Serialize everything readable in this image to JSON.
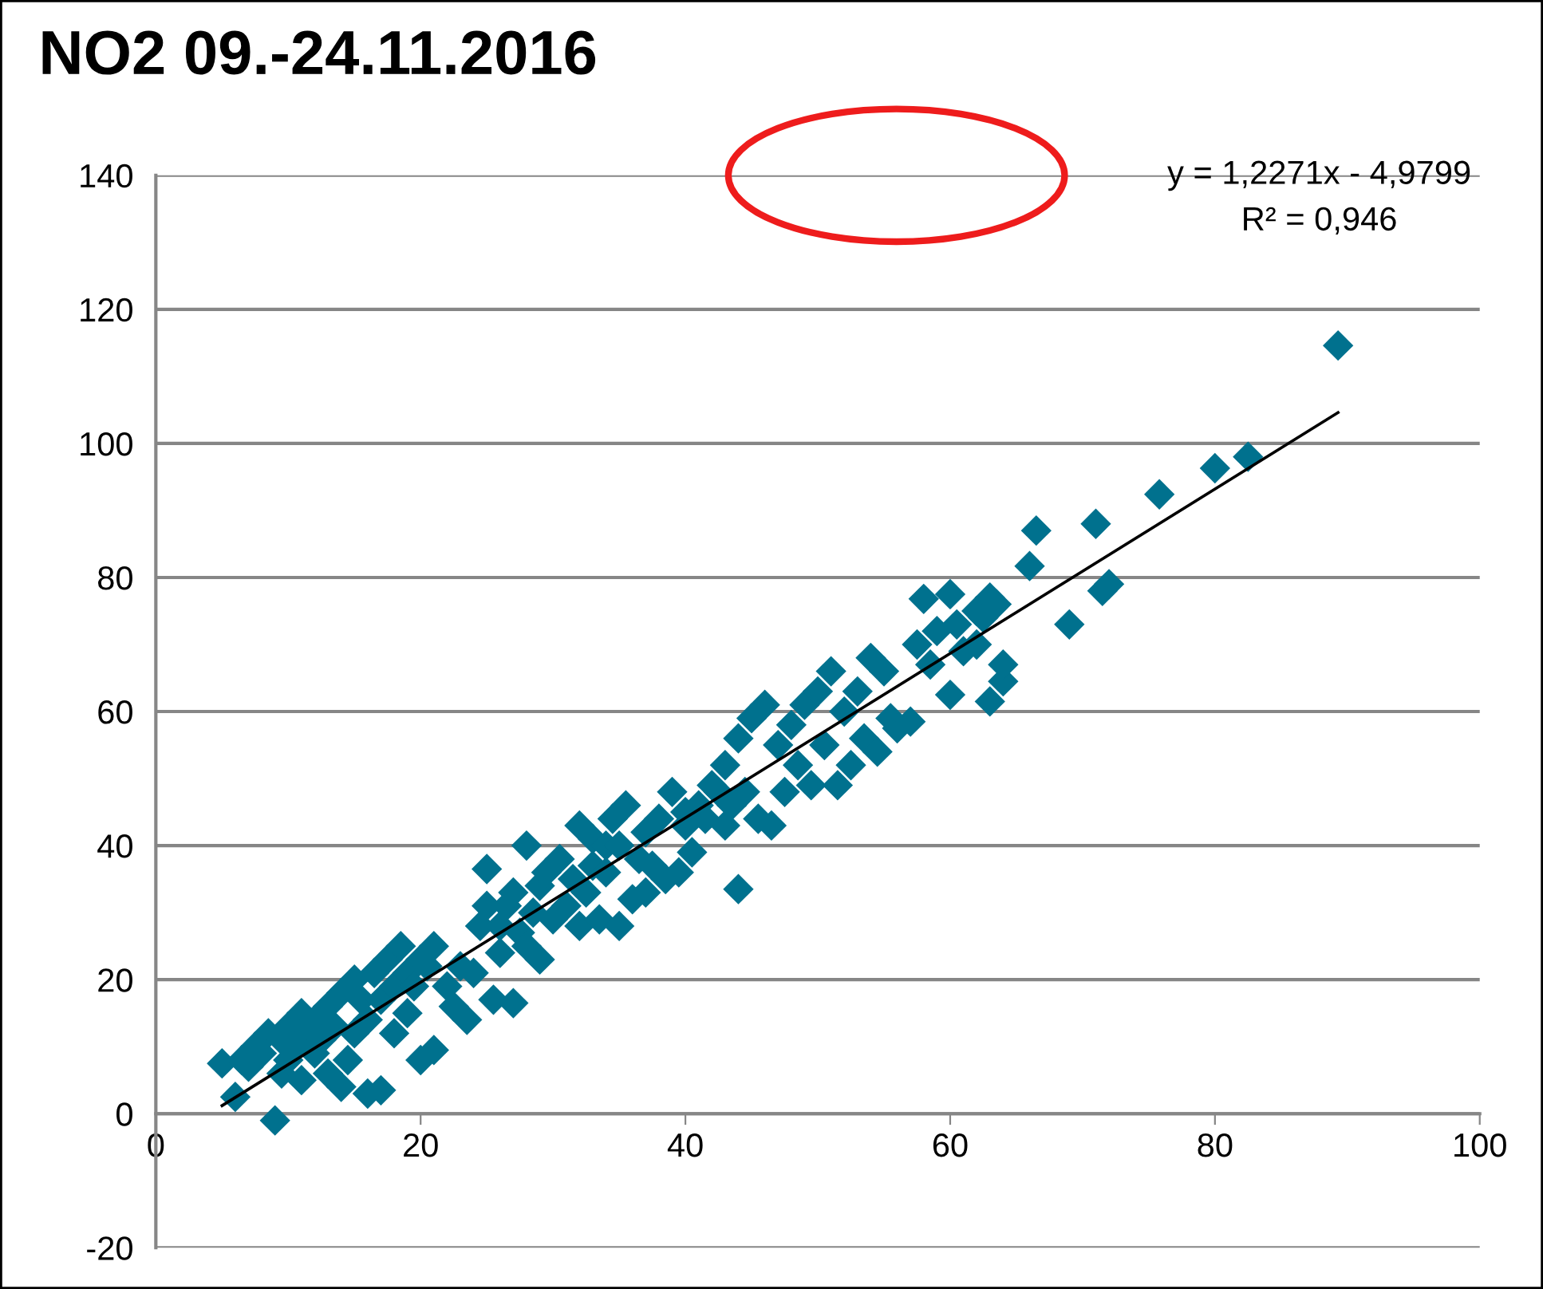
{
  "chart_data": {
    "type": "scatter",
    "title": "NO2 09.-24.11.2016",
    "annotations": [
      "y = 1,2271x - 4,9799",
      "R² = 0,946"
    ],
    "xlim": [
      0,
      100
    ],
    "xticks": [
      0,
      20,
      40,
      60,
      80,
      100
    ],
    "ylim": [
      -20,
      140
    ],
    "yticks": [
      -20,
      0,
      20,
      40,
      60,
      80,
      100,
      120,
      140
    ],
    "grid": "y",
    "series": [
      {
        "marker": "diamond",
        "color": "#00718e",
        "x": [
          5,
          6,
          6.5,
          7,
          7.5,
          8,
          8.5,
          9,
          9.5,
          9.5,
          10,
          10,
          10.5,
          11,
          11,
          11.5,
          12,
          12,
          12.5,
          13,
          13,
          13.5,
          14,
          14,
          14.5,
          15,
          15,
          15.5,
          16,
          16,
          16.5,
          17,
          17,
          17.5,
          18,
          18,
          18.5,
          19,
          19,
          19.5,
          20,
          20,
          20.5,
          21,
          21,
          22,
          22.5,
          23,
          23.5,
          24,
          24.5,
          25,
          25,
          25.5,
          26,
          26,
          26.5,
          27,
          27,
          27.5,
          28,
          28,
          28.5,
          29,
          29,
          29.5,
          30,
          30.5,
          31,
          31.5,
          32,
          32,
          32.5,
          33,
          33,
          33.5,
          34,
          34,
          34.5,
          35,
          35,
          35.5,
          36,
          36.5,
          37,
          37,
          37.5,
          38,
          38.5,
          39,
          39.5,
          40,
          40,
          40.5,
          41,
          41.5,
          42,
          42.5,
          43,
          43,
          43.5,
          44,
          44,
          44.5,
          45,
          45.5,
          46,
          46.5,
          47,
          47.5,
          48,
          48.5,
          49,
          49.5,
          50,
          50.5,
          51,
          51.5,
          52,
          52.5,
          53,
          53.5,
          54,
          54.5,
          55,
          55.5,
          56,
          57,
          57.5,
          58,
          58.5,
          59,
          60,
          60,
          60.5,
          61,
          62,
          62,
          62.5,
          63,
          63,
          63.5,
          64,
          64,
          66,
          66.5,
          69,
          71,
          71.5,
          72,
          75.8,
          80,
          82.5,
          89.3
        ],
        "values": [
          7.5,
          2.5,
          8,
          7,
          10,
          9,
          12,
          -1,
          6,
          11,
          13,
          8,
          10,
          15,
          5,
          12,
          14,
          9,
          11,
          16,
          6,
          13,
          18,
          4,
          8,
          20,
          12,
          17,
          3,
          14,
          21,
          3.5,
          17,
          23,
          12,
          19,
          25,
          15,
          21,
          19,
          8,
          23,
          22,
          9.5,
          25,
          19,
          16,
          22,
          14,
          21,
          28,
          36.5,
          31,
          17,
          28,
          24,
          31,
          16.5,
          33,
          27,
          40,
          25,
          30,
          34,
          23,
          36,
          29,
          38,
          31,
          35,
          43,
          28,
          33,
          37,
          41,
          29,
          40,
          36,
          44,
          28,
          40,
          46,
          32,
          38,
          33,
          42,
          37,
          44,
          35,
          48,
          36,
          43,
          45,
          39,
          46,
          44,
          49,
          48,
          43,
          52,
          46,
          33.5,
          56,
          48,
          59,
          44,
          61,
          43,
          55,
          48,
          58,
          52,
          61,
          49,
          63,
          55,
          66,
          49,
          60,
          52,
          63,
          56,
          68,
          54,
          66,
          59,
          57.5,
          58.5,
          70,
          76.8,
          67,
          72,
          77.5,
          62.5,
          73,
          69,
          70,
          75,
          74,
          61.5,
          77,
          76,
          64.5,
          67,
          81.7,
          87,
          73,
          88,
          78,
          79,
          92.4,
          96.3,
          98,
          114.6
        ]
      },
      {
        "type": "line",
        "marker": "none",
        "color": "#000000",
        "x": [
          5,
          89.3
        ],
        "values": [
          1.2,
          104.6
        ]
      }
    ]
  }
}
